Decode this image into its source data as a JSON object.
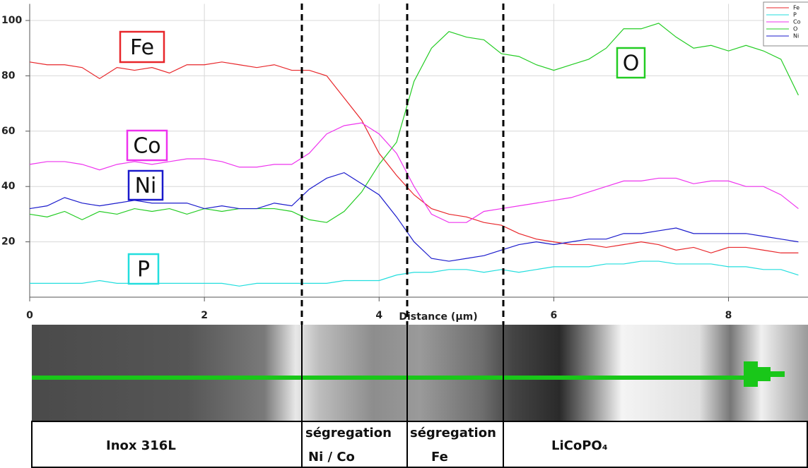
{
  "chart_data": {
    "type": "line",
    "x": [
      0,
      0.2,
      0.4,
      0.6,
      0.8,
      1.0,
      1.2,
      1.4,
      1.6,
      1.8,
      2.0,
      2.2,
      2.4,
      2.6,
      2.8,
      3.0,
      3.2,
      3.4,
      3.6,
      3.8,
      4.0,
      4.2,
      4.4,
      4.6,
      4.8,
      5.0,
      5.2,
      5.4,
      5.6,
      5.8,
      6.0,
      6.2,
      6.4,
      6.6,
      6.8,
      7.0,
      7.2,
      7.4,
      7.6,
      7.8,
      8.0,
      8.2,
      8.4,
      8.6,
      8.8
    ],
    "series": [
      {
        "name": "Fe",
        "color": "#e8262a",
        "values": [
          85,
          84,
          84,
          83,
          79,
          83,
          82,
          83,
          81,
          84,
          84,
          85,
          84,
          83,
          84,
          82,
          82,
          80,
          72,
          64,
          52,
          44,
          37,
          32,
          30,
          29,
          27,
          26,
          23,
          21,
          20,
          19,
          19,
          18,
          19,
          20,
          19,
          17,
          18,
          16,
          18,
          18,
          17,
          16,
          16
        ]
      },
      {
        "name": "P",
        "color": "#22dede",
        "values": [
          5,
          5,
          5,
          5,
          6,
          5,
          5,
          5,
          5,
          5,
          5,
          5,
          4,
          5,
          5,
          5,
          5,
          5,
          6,
          6,
          6,
          8,
          9,
          9,
          10,
          10,
          9,
          10,
          9,
          10,
          11,
          11,
          11,
          12,
          12,
          13,
          13,
          12,
          12,
          12,
          11,
          11,
          10,
          10,
          8
        ]
      },
      {
        "name": "Co",
        "color": "#ee33ee",
        "values": [
          48,
          49,
          49,
          48,
          46,
          48,
          49,
          48,
          49,
          50,
          50,
          49,
          47,
          47,
          48,
          48,
          52,
          59,
          62,
          63,
          59,
          52,
          40,
          30,
          27,
          27,
          31,
          32,
          33,
          34,
          35,
          36,
          38,
          40,
          42,
          42,
          43,
          43,
          41,
          42,
          42,
          40,
          40,
          37,
          32
        ]
      },
      {
        "name": "O",
        "color": "#22cc22",
        "values": [
          30,
          29,
          31,
          28,
          31,
          30,
          32,
          31,
          32,
          30,
          32,
          31,
          32,
          32,
          32,
          31,
          28,
          27,
          31,
          38,
          48,
          56,
          78,
          90,
          96,
          94,
          93,
          88,
          87,
          84,
          82,
          84,
          86,
          90,
          97,
          97,
          99,
          94,
          90,
          91,
          89,
          91,
          89,
          86,
          73
        ]
      },
      {
        "name": "Ni",
        "color": "#1a1acc",
        "values": [
          32,
          33,
          36,
          34,
          33,
          34,
          35,
          34,
          34,
          34,
          32,
          33,
          32,
          32,
          34,
          33,
          39,
          43,
          45,
          41,
          37,
          29,
          20,
          14,
          13,
          14,
          15,
          17,
          19,
          20,
          19,
          20,
          21,
          21,
          23,
          23,
          24,
          25,
          23,
          23,
          23,
          23,
          22,
          21,
          20
        ]
      }
    ],
    "x_label": "Distance (µm)",
    "xlim": [
      0,
      8.91
    ],
    "xticks": [
      0,
      2,
      4,
      6,
      8
    ],
    "ylim": [
      0,
      106
    ],
    "yticks": [
      20,
      40,
      60,
      80,
      100
    ],
    "grid": true,
    "legend": "top-right"
  },
  "regions": [
    [
      "Inox 316L"
    ],
    [
      "ségregation",
      "Ni / Co"
    ],
    [
      "ségregation",
      "Fe"
    ],
    [
      "LiCoPO₄"
    ]
  ]
}
